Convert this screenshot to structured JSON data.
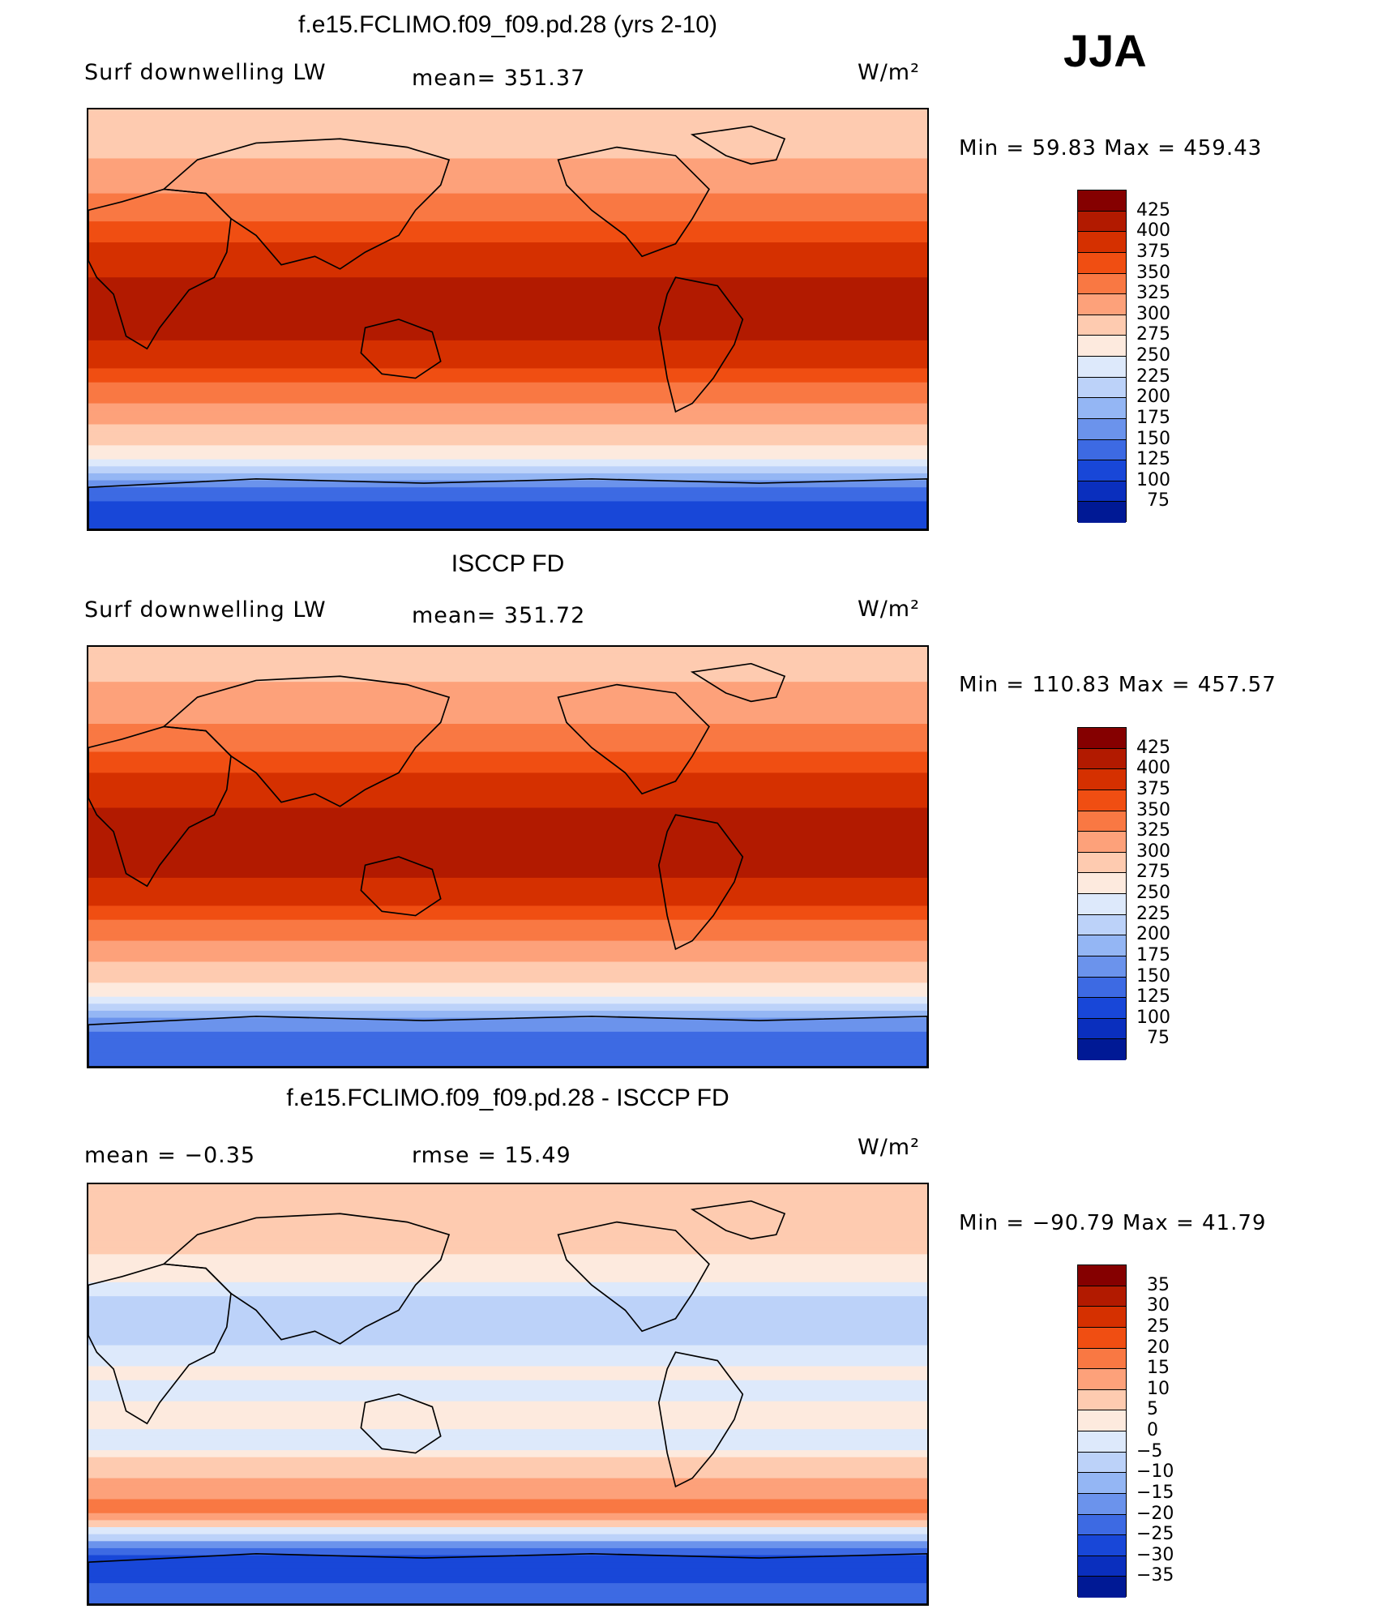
{
  "season": "JJA",
  "unit_label": "W/m²",
  "colors": {
    "warm_scale": [
      "#850000",
      "#b21a00",
      "#d53000",
      "#f04e12",
      "#f97843",
      "#fda17a",
      "#fecbb0",
      "#fdeade",
      "#dde9fb",
      "#bcd2f9",
      "#94b6f4",
      "#6b93ec",
      "#3d6ae3",
      "#1847d8",
      "#0a2fbe",
      "#001995"
    ],
    "diff_scale": [
      "#850000",
      "#b21a00",
      "#d53000",
      "#f04e12",
      "#f97843",
      "#fda17a",
      "#fecbb0",
      "#fdeade",
      "#dde9fb",
      "#bcd2f9",
      "#94b6f4",
      "#6b93ec",
      "#3d6ae3",
      "#1847d8",
      "#0a2fbe",
      "#001995"
    ]
  },
  "panels": [
    {
      "title": "f.e15.FCLIMO.f09_f09.pd.28 (yrs 2-10)",
      "left_label": "Surf downwelling LW",
      "center_label": "mean= 351.37",
      "min_max": "Min =   59.83 Max =  459.43"
    },
    {
      "title": "ISCCP FD",
      "left_label": "Surf downwelling LW",
      "center_label": "mean= 351.72",
      "min_max": "Min = 110.83 Max =  457.57"
    },
    {
      "title": "f.e15.FCLIMO.f09_f09.pd.28 - ISCCP FD",
      "left_label": "mean =   −0.35",
      "center_label": "rmse =   15.49",
      "min_max": "Min = −90.79 Max =   41.79"
    }
  ],
  "chart_data": [
    {
      "type": "heatmap",
      "title": "f.e15.FCLIMO.f09_f09.pd.28 (yrs 2-10)",
      "variable": "Surf downwelling LW",
      "units": "W/m²",
      "mean": 351.37,
      "min": 59.83,
      "max": 459.43,
      "contour_levels": [
        425,
        400,
        375,
        350,
        325,
        300,
        275,
        250,
        225,
        200,
        175,
        150,
        125,
        100,
        75
      ],
      "zonal_profile_lat": [
        85,
        70,
        55,
        45,
        35,
        20,
        10,
        0,
        -10,
        -20,
        -30,
        -40,
        -50,
        -60,
        -70,
        -80
      ],
      "zonal_profile_value": [
        280,
        300,
        325,
        345,
        370,
        395,
        410,
        410,
        400,
        375,
        345,
        315,
        285,
        250,
        160,
        120
      ]
    },
    {
      "type": "heatmap",
      "title": "ISCCP FD",
      "variable": "Surf downwelling LW",
      "units": "W/m²",
      "mean": 351.72,
      "min": 110.83,
      "max": 457.57,
      "contour_levels": [
        425,
        400,
        375,
        350,
        325,
        300,
        275,
        250,
        225,
        200,
        175,
        150,
        125,
        100,
        75
      ],
      "zonal_profile_lat": [
        85,
        70,
        55,
        45,
        35,
        20,
        10,
        0,
        -10,
        -20,
        -30,
        -40,
        -50,
        -60,
        -70,
        -80
      ],
      "zonal_profile_value": [
        285,
        305,
        330,
        350,
        375,
        400,
        415,
        415,
        400,
        375,
        345,
        315,
        285,
        250,
        165,
        125
      ]
    },
    {
      "type": "heatmap",
      "title": "f.e15.FCLIMO.f09_f09.pd.28 - ISCCP FD",
      "units": "W/m²",
      "mean": -0.35,
      "rmse": 15.49,
      "min": -90.79,
      "max": 41.79,
      "contour_levels": [
        35,
        30,
        25,
        20,
        15,
        10,
        5,
        0,
        -5,
        -10,
        -15,
        -20,
        -25,
        -30,
        -35
      ],
      "zonal_profile_lat": [
        85,
        70,
        55,
        45,
        35,
        20,
        10,
        0,
        -10,
        -20,
        -30,
        -40,
        -50,
        -60,
        -70,
        -80
      ],
      "zonal_profile_value": [
        5,
        8,
        3,
        -2,
        -10,
        -5,
        2,
        -3,
        5,
        -5,
        8,
        12,
        18,
        -5,
        -30,
        -25
      ]
    }
  ]
}
